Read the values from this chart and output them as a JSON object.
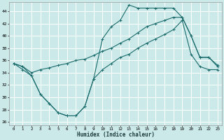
{
  "xlabel": "Humidex (Indice chaleur)",
  "bg_color": "#cce9e9",
  "grid_color": "#b0d8d8",
  "line_color": "#1a6b6b",
  "xlim": [
    -0.5,
    23.5
  ],
  "ylim": [
    25.5,
    45.5
  ],
  "xticks": [
    0,
    1,
    2,
    3,
    4,
    5,
    6,
    7,
    8,
    9,
    10,
    11,
    12,
    13,
    14,
    15,
    16,
    17,
    18,
    19,
    20,
    21,
    22,
    23
  ],
  "yticks": [
    26,
    28,
    30,
    32,
    34,
    36,
    38,
    40,
    42,
    44
  ],
  "series1_x": [
    0,
    1,
    2,
    3,
    4,
    5,
    6,
    7,
    8,
    9,
    10,
    11,
    12,
    13,
    14,
    15,
    16,
    17,
    18,
    19,
    20,
    21,
    22,
    23
  ],
  "series1_y": [
    35.5,
    35.0,
    34.0,
    34.5,
    34.8,
    35.2,
    35.5,
    36.0,
    36.2,
    36.8,
    37.5,
    38.0,
    38.8,
    39.5,
    40.5,
    41.5,
    42.0,
    42.5,
    43.0,
    43.0,
    40.0,
    36.5,
    36.5,
    35.0
  ],
  "series2_x": [
    0,
    1,
    2,
    3,
    4,
    5,
    6,
    7,
    8,
    9,
    10,
    11,
    12,
    13,
    14,
    15,
    16,
    17,
    18,
    19,
    20,
    21,
    22,
    23
  ],
  "series2_y": [
    35.5,
    35.0,
    33.5,
    30.5,
    29.0,
    27.5,
    27.0,
    27.0,
    28.5,
    33.0,
    39.5,
    41.5,
    42.5,
    45.0,
    44.5,
    44.5,
    44.5,
    44.5,
    44.5,
    43.0,
    40.0,
    36.5,
    36.5,
    35.2
  ],
  "series3_x": [
    0,
    1,
    2,
    3,
    4,
    5,
    6,
    7,
    8,
    9,
    10,
    11,
    12,
    13,
    14,
    15,
    16,
    17,
    18,
    19,
    20,
    21,
    22,
    23
  ],
  "series3_y": [
    35.5,
    34.5,
    33.5,
    30.5,
    29.0,
    27.5,
    27.0,
    27.0,
    28.5,
    33.0,
    34.5,
    35.5,
    36.5,
    37.0,
    38.0,
    38.8,
    39.5,
    40.2,
    41.0,
    42.5,
    37.0,
    35.0,
    34.5,
    34.5
  ]
}
